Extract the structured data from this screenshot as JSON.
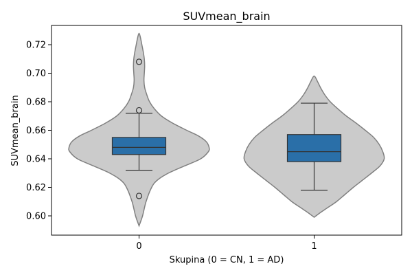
{
  "chart_data": {
    "type": "violin",
    "title": "SUVmean_brain",
    "xlabel": "Skupina (0 = CN, 1 = AD)",
    "ylabel": "SUVmean_brain",
    "categories": [
      "0",
      "1"
    ],
    "ylim": [
      0.5865,
      0.7335
    ],
    "yticks": [
      0.6,
      0.62,
      0.64,
      0.66,
      0.68,
      0.7,
      0.72
    ],
    "ytick_labels": [
      "0.60",
      "0.62",
      "0.64",
      "0.66",
      "0.68",
      "0.70",
      "0.72"
    ],
    "grid": false,
    "colors": {
      "violin_fill": "#cbcbcb",
      "violin_edge": "#808080",
      "box_fill": "#2a6fa8",
      "box_edge": "#333333"
    },
    "groups": [
      {
        "label": "0",
        "box": {
          "whisker_low": 0.632,
          "q1": 0.643,
          "median": 0.648,
          "q3": 0.655,
          "whisker_high": 0.672
        },
        "outliers": [
          0.708,
          0.674,
          0.614
        ],
        "violin": {
          "y": [
            0.593,
            0.6,
            0.61,
            0.62,
            0.625,
            0.63,
            0.635,
            0.64,
            0.645,
            0.648,
            0.652,
            0.656,
            0.66,
            0.665,
            0.67,
            0.675,
            0.68,
            0.685,
            0.69,
            0.695,
            0.7,
            0.705,
            0.71,
            0.715,
            0.72,
            0.725,
            0.728
          ],
          "width": [
            0.0,
            0.05,
            0.1,
            0.18,
            0.26,
            0.42,
            0.65,
            0.88,
            0.99,
            1.0,
            0.96,
            0.85,
            0.68,
            0.48,
            0.32,
            0.22,
            0.15,
            0.11,
            0.08,
            0.07,
            0.075,
            0.08,
            0.075,
            0.06,
            0.04,
            0.02,
            0.0
          ]
        }
      },
      {
        "label": "1",
        "box": {
          "whisker_low": 0.618,
          "q1": 0.638,
          "median": 0.645,
          "q3": 0.657,
          "whisker_high": 0.679
        },
        "outliers": [],
        "violin": {
          "y": [
            0.599,
            0.602,
            0.606,
            0.61,
            0.615,
            0.62,
            0.625,
            0.63,
            0.635,
            0.64,
            0.645,
            0.65,
            0.655,
            0.66,
            0.665,
            0.67,
            0.675,
            0.68,
            0.685,
            0.69,
            0.694,
            0.698
          ],
          "width": [
            0.0,
            0.08,
            0.2,
            0.32,
            0.44,
            0.56,
            0.69,
            0.82,
            0.94,
            1.0,
            0.98,
            0.93,
            0.85,
            0.73,
            0.6,
            0.46,
            0.34,
            0.23,
            0.15,
            0.09,
            0.05,
            0.0
          ]
        }
      }
    ]
  }
}
